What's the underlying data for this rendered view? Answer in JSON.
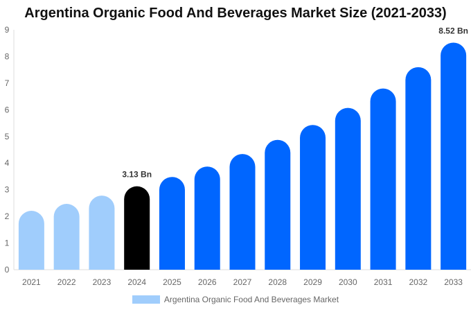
{
  "chart_data": {
    "type": "bar",
    "title": "Argentina Organic Food And Beverages Market Size (2021-2033)",
    "categories": [
      "2021",
      "2022",
      "2023",
      "2024",
      "2025",
      "2026",
      "2027",
      "2028",
      "2029",
      "2030",
      "2031",
      "2032",
      "2033"
    ],
    "series": [
      {
        "name": "Argentina Organic Food And Beverages Market",
        "values": [
          2.21,
          2.47,
          2.78,
          3.13,
          3.48,
          3.87,
          4.34,
          4.87,
          5.43,
          6.07,
          6.8,
          7.6,
          8.52
        ]
      }
    ],
    "data_labels": {
      "3": "3.13 Bn",
      "12": "8.52 Bn"
    },
    "ylim": [
      0,
      9
    ],
    "yticks": [
      "0",
      "1",
      "2",
      "3",
      "4",
      "5",
      "6",
      "7",
      "8",
      "9"
    ],
    "grid": false,
    "legend_position": "bottom",
    "colors": {
      "historical": "#a0cdfc",
      "base_year": "#000000",
      "forecast": "#0066ff"
    }
  }
}
